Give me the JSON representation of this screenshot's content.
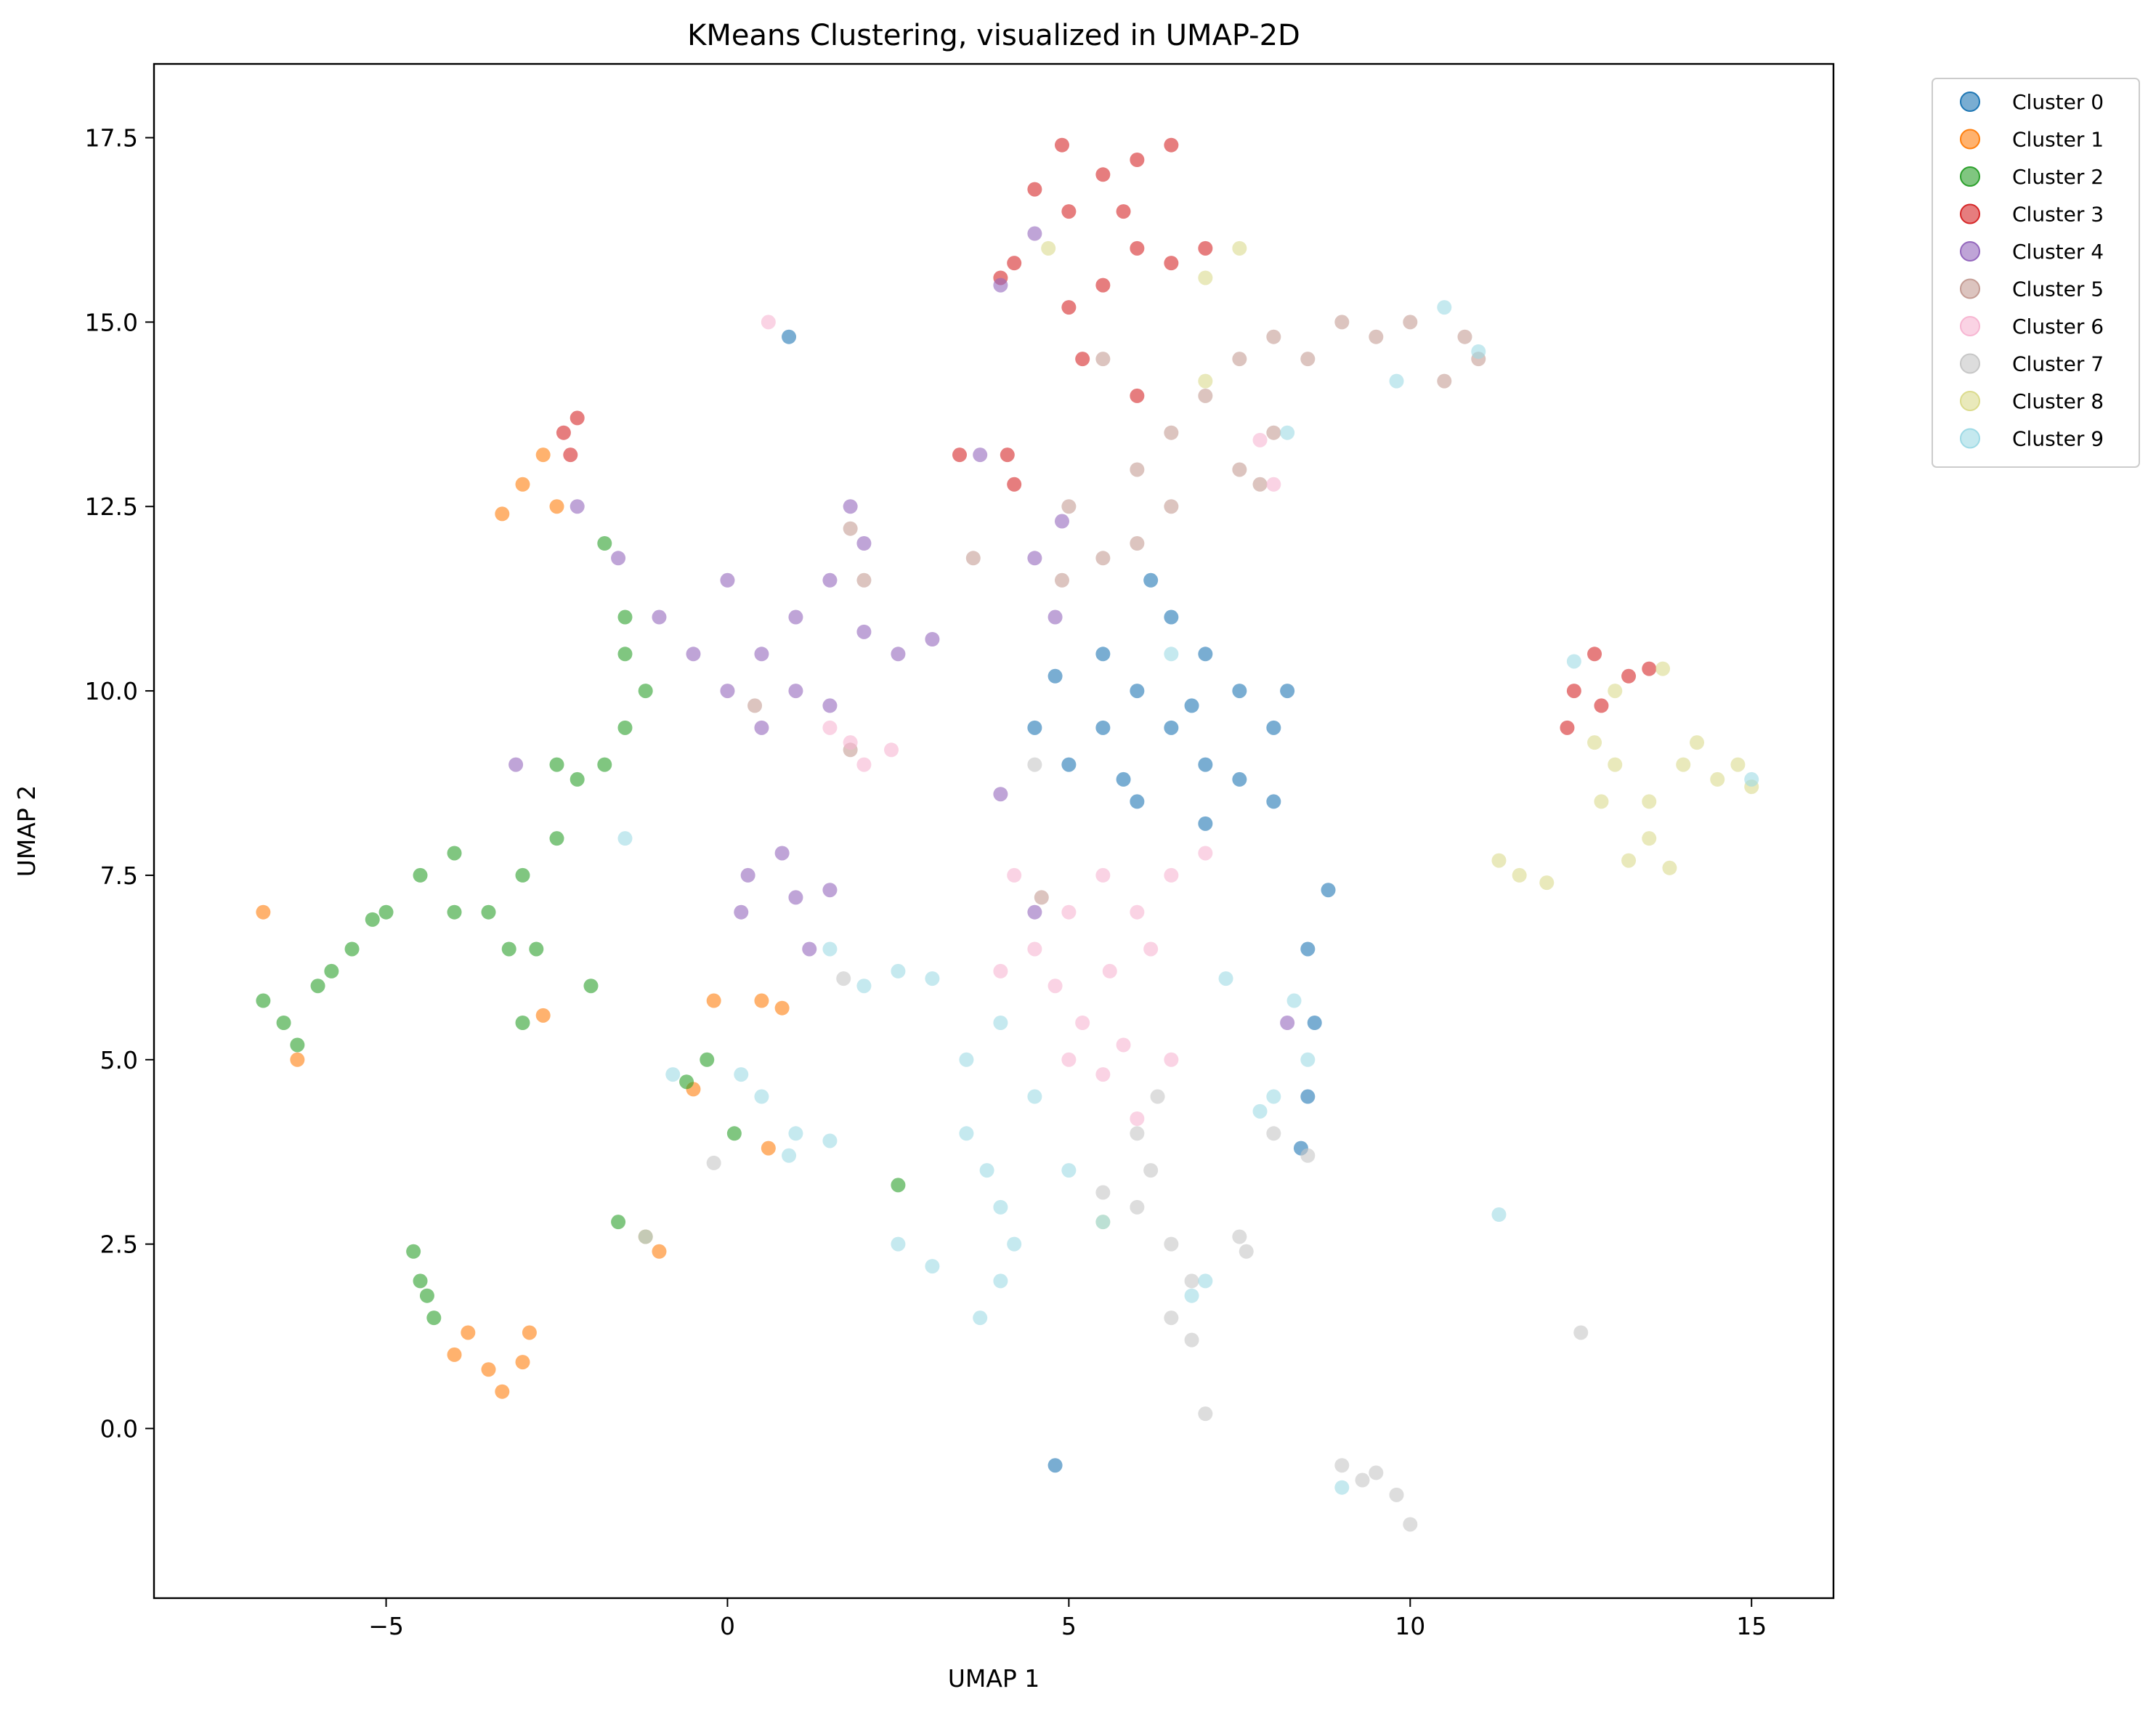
{
  "chart_data": {
    "type": "scatter",
    "title": "KMeans Clustering, visualized in UMAP-2D",
    "xlabel": "UMAP 1",
    "ylabel": "UMAP 2",
    "xlim": [
      -8.4,
      16.2
    ],
    "ylim": [
      -2.3,
      18.5
    ],
    "xticks": [
      -5,
      0,
      5,
      10,
      15
    ],
    "xtick_labels": [
      "−5",
      "0",
      "5",
      "10",
      "15"
    ],
    "yticks": [
      0.0,
      2.5,
      5.0,
      7.5,
      10.0,
      12.5,
      15.0,
      17.5
    ],
    "ytick_labels": [
      "0.0",
      "2.5",
      "5.0",
      "7.5",
      "10.0",
      "12.5",
      "15.0",
      "17.5"
    ],
    "grid": false,
    "legend_position": "outside upper right",
    "point_alpha": 0.6,
    "series": [
      {
        "name": "Cluster 0",
        "color": "#1f77b4",
        "points": [
          [
            5.5,
            10.5
          ],
          [
            6.0,
            10.0
          ],
          [
            6.5,
            9.5
          ],
          [
            7.0,
            9.0
          ],
          [
            7.5,
            8.8
          ],
          [
            8.0,
            8.5
          ],
          [
            7.5,
            10.0
          ],
          [
            7.0,
            10.5
          ],
          [
            6.5,
            11.0
          ],
          [
            5.0,
            9.0
          ],
          [
            4.5,
            9.5
          ],
          [
            6.0,
            8.5
          ],
          [
            7.0,
            8.2
          ],
          [
            8.0,
            9.5
          ],
          [
            8.2,
            10.0
          ],
          [
            8.5,
            6.5
          ],
          [
            8.6,
            5.5
          ],
          [
            8.5,
            4.5
          ],
          [
            8.4,
            3.8
          ],
          [
            5.5,
            9.5
          ],
          [
            6.2,
            11.5
          ],
          [
            6.8,
            9.8
          ],
          [
            5.8,
            8.8
          ],
          [
            4.8,
            10.2
          ],
          [
            0.9,
            14.8
          ],
          [
            4.8,
            -0.5
          ],
          [
            8.8,
            7.3
          ]
        ]
      },
      {
        "name": "Cluster 1",
        "color": "#ff7f0e",
        "points": [
          [
            -2.7,
            13.2
          ],
          [
            -3.0,
            12.8
          ],
          [
            -3.3,
            12.4
          ],
          [
            -2.5,
            12.5
          ],
          [
            -3.5,
            0.8
          ],
          [
            -3.0,
            0.9
          ],
          [
            -4.0,
            1.0
          ],
          [
            -3.3,
            0.5
          ],
          [
            -2.9,
            1.3
          ],
          [
            -3.8,
            1.3
          ],
          [
            -1.2,
            2.6
          ],
          [
            -1.0,
            2.4
          ],
          [
            0.5,
            5.8
          ],
          [
            0.8,
            5.7
          ],
          [
            -0.2,
            5.8
          ],
          [
            -6.3,
            5.0
          ],
          [
            -6.8,
            7.0
          ],
          [
            -2.7,
            5.6
          ],
          [
            0.6,
            3.8
          ],
          [
            -0.5,
            4.6
          ]
        ]
      },
      {
        "name": "Cluster 2",
        "color": "#2ca02c",
        "points": [
          [
            -6.5,
            5.5
          ],
          [
            -6.8,
            5.8
          ],
          [
            -6.0,
            6.0
          ],
          [
            -6.3,
            5.2
          ],
          [
            -5.5,
            6.5
          ],
          [
            -5.0,
            7.0
          ],
          [
            -4.5,
            7.5
          ],
          [
            -4.0,
            7.8
          ],
          [
            -3.5,
            7.0
          ],
          [
            -3.0,
            7.5
          ],
          [
            -2.8,
            6.5
          ],
          [
            -2.5,
            8.0
          ],
          [
            -2.2,
            8.8
          ],
          [
            -1.8,
            9.0
          ],
          [
            -1.5,
            9.5
          ],
          [
            -1.2,
            10.0
          ],
          [
            -1.5,
            11.0
          ],
          [
            -1.8,
            12.0
          ],
          [
            -3.2,
            6.5
          ],
          [
            -3.0,
            5.5
          ],
          [
            -5.8,
            6.2
          ],
          [
            -4.0,
            7.0
          ],
          [
            -2.0,
            6.0
          ],
          [
            -1.5,
            10.5
          ],
          [
            -4.6,
            2.4
          ],
          [
            -4.5,
            2.0
          ],
          [
            -4.3,
            1.5
          ],
          [
            -4.4,
            1.8
          ],
          [
            -0.6,
            4.7
          ],
          [
            -0.3,
            5.0
          ],
          [
            0.1,
            4.0
          ],
          [
            -1.6,
            2.8
          ],
          [
            2.5,
            3.3
          ],
          [
            -2.5,
            9.0
          ],
          [
            -5.2,
            6.9
          ]
        ]
      },
      {
        "name": "Cluster 3",
        "color": "#d62728",
        "points": [
          [
            5.0,
            16.5
          ],
          [
            5.5,
            17.0
          ],
          [
            6.0,
            17.2
          ],
          [
            6.5,
            17.4
          ],
          [
            6.0,
            16.0
          ],
          [
            5.5,
            15.5
          ],
          [
            4.5,
            16.8
          ],
          [
            4.2,
            15.8
          ],
          [
            5.0,
            15.2
          ],
          [
            6.5,
            15.8
          ],
          [
            7.0,
            16.0
          ],
          [
            5.8,
            16.5
          ],
          [
            4.9,
            17.4
          ],
          [
            5.2,
            14.5
          ],
          [
            6.0,
            14.0
          ],
          [
            4.0,
            15.6
          ],
          [
            -2.4,
            13.5
          ],
          [
            -2.2,
            13.7
          ],
          [
            -2.3,
            13.2
          ],
          [
            12.4,
            10.0
          ],
          [
            12.7,
            10.5
          ],
          [
            12.8,
            9.8
          ],
          [
            13.2,
            10.2
          ],
          [
            13.5,
            10.3
          ],
          [
            12.3,
            9.5
          ],
          [
            3.4,
            13.2
          ],
          [
            4.2,
            12.8
          ],
          [
            4.1,
            13.2
          ]
        ]
      },
      {
        "name": "Cluster 4",
        "color": "#9467bd",
        "points": [
          [
            0.0,
            10.0
          ],
          [
            0.5,
            10.5
          ],
          [
            1.0,
            11.0
          ],
          [
            1.5,
            11.5
          ],
          [
            2.0,
            12.0
          ],
          [
            1.8,
            12.5
          ],
          [
            1.0,
            10.0
          ],
          [
            2.5,
            10.5
          ],
          [
            3.0,
            10.7
          ],
          [
            0.5,
            9.5
          ],
          [
            -0.5,
            10.5
          ],
          [
            -1.0,
            11.0
          ],
          [
            1.5,
            9.8
          ],
          [
            2.0,
            10.8
          ],
          [
            0.0,
            11.5
          ],
          [
            0.3,
            7.5
          ],
          [
            0.8,
            7.8
          ],
          [
            1.0,
            7.2
          ],
          [
            0.2,
            7.0
          ],
          [
            1.5,
            7.3
          ],
          [
            1.2,
            6.5
          ],
          [
            4.8,
            11.0
          ],
          [
            4.5,
            11.8
          ],
          [
            4.9,
            12.3
          ],
          [
            4.0,
            8.6
          ],
          [
            4.5,
            7.0
          ],
          [
            -2.2,
            12.5
          ],
          [
            -1.6,
            11.8
          ],
          [
            3.7,
            13.2
          ],
          [
            4.5,
            16.2
          ],
          [
            4.0,
            15.5
          ],
          [
            8.2,
            5.5
          ],
          [
            -3.1,
            9.0
          ]
        ]
      },
      {
        "name": "Cluster 5",
        "color": "#c49c94",
        "points": [
          [
            6.0,
            13.0
          ],
          [
            6.5,
            13.5
          ],
          [
            7.0,
            14.0
          ],
          [
            7.5,
            14.5
          ],
          [
            8.0,
            14.8
          ],
          [
            9.0,
            15.0
          ],
          [
            10.0,
            15.0
          ],
          [
            10.8,
            14.8
          ],
          [
            11.0,
            14.5
          ],
          [
            6.0,
            12.0
          ],
          [
            5.5,
            11.8
          ],
          [
            6.5,
            12.5
          ],
          [
            7.5,
            13.0
          ],
          [
            8.0,
            13.5
          ],
          [
            8.5,
            14.5
          ],
          [
            5.0,
            12.5
          ],
          [
            5.5,
            14.5
          ],
          [
            4.9,
            11.5
          ],
          [
            9.5,
            14.8
          ],
          [
            10.5,
            14.2
          ],
          [
            7.8,
            12.8
          ],
          [
            1.8,
            12.2
          ],
          [
            2.0,
            11.5
          ],
          [
            3.6,
            11.8
          ],
          [
            4.6,
            7.2
          ],
          [
            0.4,
            9.8
          ],
          [
            1.8,
            9.2
          ]
        ]
      },
      {
        "name": "Cluster 6",
        "color": "#f7b6d2",
        "points": [
          [
            5.0,
            7.0
          ],
          [
            5.5,
            7.5
          ],
          [
            6.0,
            7.0
          ],
          [
            6.5,
            7.5
          ],
          [
            4.5,
            6.5
          ],
          [
            4.8,
            6.0
          ],
          [
            5.2,
            5.5
          ],
          [
            5.8,
            5.2
          ],
          [
            6.5,
            5.0
          ],
          [
            4.0,
            6.2
          ],
          [
            5.0,
            5.0
          ],
          [
            6.2,
            6.5
          ],
          [
            7.0,
            7.8
          ],
          [
            4.2,
            7.5
          ],
          [
            5.6,
            6.2
          ],
          [
            1.5,
            9.5
          ],
          [
            2.0,
            9.0
          ],
          [
            1.8,
            9.3
          ],
          [
            2.4,
            9.2
          ],
          [
            0.6,
            15.0
          ],
          [
            8.0,
            12.8
          ],
          [
            7.8,
            13.4
          ],
          [
            5.5,
            4.8
          ],
          [
            6.0,
            4.2
          ]
        ]
      },
      {
        "name": "Cluster 7",
        "color": "#c7c7c7",
        "points": [
          [
            6.0,
            4.0
          ],
          [
            6.2,
            3.5
          ],
          [
            6.0,
            3.0
          ],
          [
            6.5,
            2.5
          ],
          [
            6.8,
            2.0
          ],
          [
            6.5,
            1.5
          ],
          [
            6.8,
            1.2
          ],
          [
            7.0,
            0.2
          ],
          [
            9.5,
            -0.6
          ],
          [
            9.8,
            -0.9
          ],
          [
            10.0,
            -1.3
          ],
          [
            9.3,
            -0.7
          ],
          [
            9.0,
            -0.5
          ],
          [
            5.5,
            3.2
          ],
          [
            6.3,
            4.5
          ],
          [
            8.0,
            4.0
          ],
          [
            7.5,
            2.6
          ],
          [
            12.5,
            1.3
          ],
          [
            4.5,
            9.0
          ],
          [
            8.5,
            3.7
          ],
          [
            -0.2,
            3.6
          ],
          [
            7.6,
            2.4
          ],
          [
            1.7,
            6.1
          ]
        ]
      },
      {
        "name": "Cluster 8",
        "color": "#dbdb8d",
        "points": [
          [
            13.0,
            9.0
          ],
          [
            13.5,
            8.5
          ],
          [
            14.0,
            9.0
          ],
          [
            14.5,
            8.8
          ],
          [
            15.0,
            8.7
          ],
          [
            13.5,
            8.0
          ],
          [
            13.8,
            7.6
          ],
          [
            12.8,
            8.5
          ],
          [
            14.2,
            9.3
          ],
          [
            13.0,
            10.0
          ],
          [
            13.7,
            10.3
          ],
          [
            14.8,
            9.0
          ],
          [
            13.2,
            7.7
          ],
          [
            12.7,
            9.3
          ],
          [
            11.3,
            7.7
          ],
          [
            11.6,
            7.5
          ],
          [
            12.0,
            7.4
          ],
          [
            7.0,
            15.6
          ],
          [
            7.5,
            16.0
          ],
          [
            4.7,
            16.0
          ],
          [
            7.0,
            14.2
          ],
          [
            5.5,
            2.8
          ]
        ]
      },
      {
        "name": "Cluster 9",
        "color": "#9edae5",
        "points": [
          [
            3.5,
            4.0
          ],
          [
            3.8,
            3.5
          ],
          [
            4.0,
            3.0
          ],
          [
            4.2,
            2.5
          ],
          [
            4.0,
            2.0
          ],
          [
            3.7,
            1.5
          ],
          [
            3.0,
            2.2
          ],
          [
            2.5,
            2.5
          ],
          [
            3.5,
            5.0
          ],
          [
            4.0,
            5.5
          ],
          [
            4.5,
            4.5
          ],
          [
            5.0,
            3.5
          ],
          [
            5.5,
            2.8
          ],
          [
            2.0,
            6.0
          ],
          [
            2.5,
            6.2
          ],
          [
            3.0,
            6.1
          ],
          [
            1.5,
            6.5
          ],
          [
            0.5,
            4.5
          ],
          [
            1.0,
            4.0
          ],
          [
            0.2,
            4.8
          ],
          [
            8.0,
            4.5
          ],
          [
            8.5,
            5.0
          ],
          [
            8.3,
            5.8
          ],
          [
            7.8,
            4.3
          ],
          [
            11.3,
            2.9
          ],
          [
            6.8,
            1.8
          ],
          [
            7.0,
            2.0
          ],
          [
            10.5,
            15.2
          ],
          [
            11.0,
            14.6
          ],
          [
            9.8,
            14.2
          ],
          [
            8.2,
            13.5
          ],
          [
            6.5,
            10.5
          ],
          [
            -1.5,
            8.0
          ],
          [
            -1.2,
            2.6
          ],
          [
            12.4,
            10.4
          ],
          [
            15.0,
            8.8
          ],
          [
            -0.8,
            4.8
          ],
          [
            0.9,
            3.7
          ],
          [
            1.5,
            3.9
          ],
          [
            7.3,
            6.1
          ],
          [
            9.0,
            -0.8
          ]
        ]
      }
    ]
  }
}
